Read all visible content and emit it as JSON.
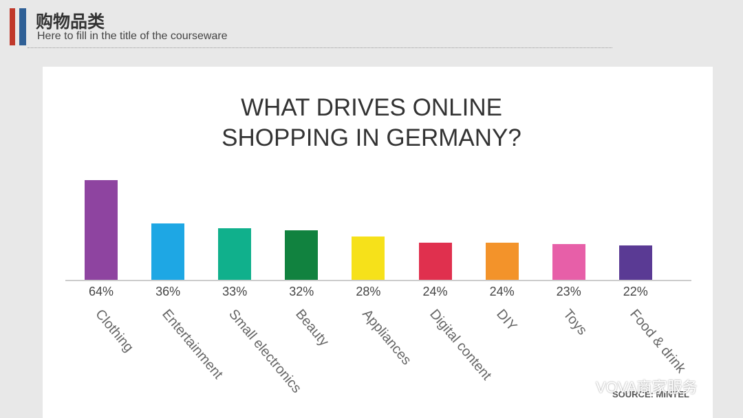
{
  "header": {
    "title": "购物品类",
    "subtitle": "Here to fill in the title of the courseware"
  },
  "chart_data": {
    "type": "bar",
    "title": "WHAT DRIVES ONLINE SHOPPING IN GERMANY?",
    "categories": [
      "Clothing",
      "Entertainment",
      "Small electronics",
      "Beauty",
      "Appliances",
      "Digital content",
      "DIY",
      "Toys",
      "Food & drink"
    ],
    "values": [
      64,
      36,
      33,
      32,
      28,
      24,
      24,
      23,
      22
    ],
    "value_labels": [
      "64%",
      "36%",
      "33%",
      "32%",
      "28%",
      "24%",
      "24%",
      "23%",
      "22%"
    ],
    "colors": [
      "#8e44a0",
      "#1ea7e4",
      "#10b08c",
      "#11823f",
      "#f6e11a",
      "#e0304e",
      "#f3932a",
      "#e75fa8",
      "#5a3a94"
    ],
    "source": "SOURCE: MINTEL"
  },
  "watermark": "VOVA商家服务"
}
